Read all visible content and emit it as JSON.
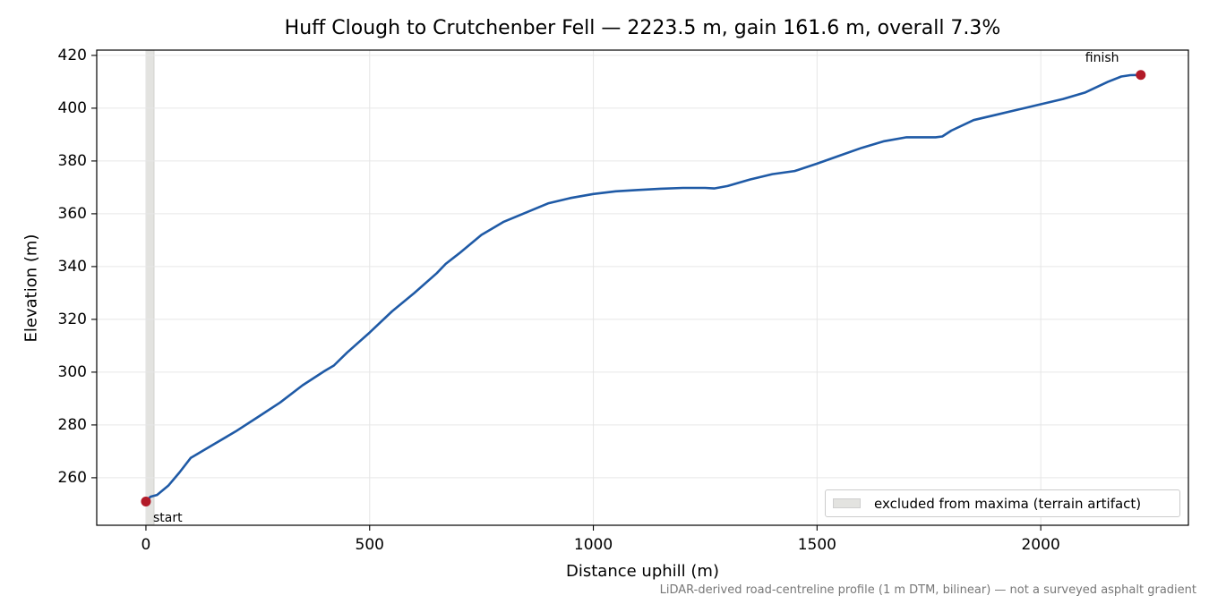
{
  "chart_data": {
    "type": "line",
    "title": "Huff Clough to Crutchenber Fell — 2223.5 m, gain 161.6 m, overall 7.3%",
    "xlabel": "Distance uphill (m)",
    "ylabel": "Elevation (m)",
    "xlim": [
      -110,
      2330
    ],
    "ylim": [
      242,
      422
    ],
    "xticks": [
      0,
      500,
      1000,
      1500,
      2000
    ],
    "yticks": [
      260,
      280,
      300,
      320,
      340,
      360,
      380,
      400,
      420
    ],
    "grid": true,
    "series": [
      {
        "color": "#1f5aa6",
        "x": [
          0,
          10,
          25,
          50,
          75,
          100,
          125,
          150,
          200,
          250,
          300,
          350,
          400,
          420,
          450,
          500,
          550,
          600,
          650,
          670,
          700,
          750,
          800,
          850,
          900,
          950,
          1000,
          1050,
          1100,
          1150,
          1200,
          1250,
          1270,
          1300,
          1350,
          1400,
          1450,
          1500,
          1550,
          1600,
          1650,
          1700,
          1750,
          1765,
          1780,
          1800,
          1850,
          1900,
          1950,
          2000,
          2050,
          2100,
          2150,
          2180,
          2200,
          2223.5
        ],
        "values": [
          251,
          252.8,
          253.5,
          257,
          262,
          267.5,
          270,
          272.5,
          277.5,
          283,
          288.5,
          295,
          300.5,
          302.5,
          307.5,
          315,
          323,
          330,
          337.5,
          341,
          345,
          352,
          357,
          360.5,
          364,
          366,
          367.5,
          368.5,
          369,
          369.5,
          369.8,
          369.8,
          369.6,
          370.5,
          373,
          375,
          376.2,
          379,
          382,
          385,
          387.5,
          389,
          389,
          389,
          389.3,
          391.5,
          395.5,
          397.5,
          399.5,
          401.5,
          403.5,
          406,
          410,
          412,
          412.5,
          412.6
        ]
      }
    ],
    "excluded_band": {
      "x": [
        0,
        18
      ],
      "label": "excluded from maxima (terrain artifact)",
      "color": "#e3e3e0"
    },
    "markers": [
      {
        "label": "start",
        "x": 0,
        "y": 251,
        "color": "#b21a28"
      },
      {
        "label": "finish",
        "x": 2223.5,
        "y": 412.6,
        "color": "#b21a28"
      }
    ],
    "legend": {
      "position": "lower-right"
    },
    "footnote": "LiDAR-derived road-centreline profile (1 m DTM, bilinear) — not a surveyed asphalt gradient"
  }
}
